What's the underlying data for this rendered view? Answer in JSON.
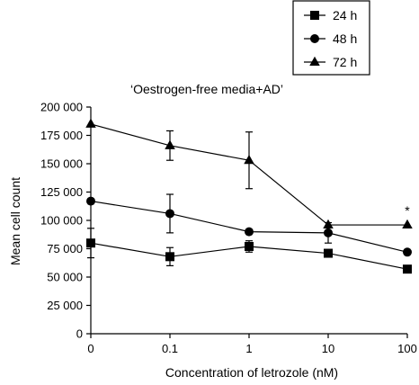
{
  "chart_data": {
    "type": "line",
    "title": "‘Oestrogen-free media+AD’",
    "xlabel": "Concentration of letrozole (nM)",
    "ylabel": "Mean cell count",
    "x_categories": [
      "0",
      "0.1",
      "1",
      "10",
      "100"
    ],
    "ylim": [
      0,
      200000
    ],
    "y_ticks": [
      0,
      25000,
      50000,
      75000,
      100000,
      125000,
      150000,
      175000,
      200000
    ],
    "y_tick_labels": [
      "0",
      "25 000",
      "50 000",
      "75 000",
      "100 000",
      "125 000",
      "150 000",
      "175 000",
      "200 000"
    ],
    "grid": false,
    "legend_position": "top-right",
    "series": [
      {
        "name": "24 h",
        "marker": "square",
        "values": [
          80000,
          68000,
          77000,
          71000,
          57000
        ],
        "errors": [
          13000,
          8000,
          5000,
          0,
          0
        ]
      },
      {
        "name": "48 h",
        "marker": "circle",
        "values": [
          117000,
          106000,
          90000,
          89000,
          72000
        ],
        "errors": [
          0,
          17000,
          0,
          9000,
          0
        ]
      },
      {
        "name": "72 h",
        "marker": "triangle",
        "values": [
          185000,
          166000,
          153000,
          96000,
          96000
        ],
        "errors": [
          0,
          13000,
          25000,
          0,
          0
        ]
      }
    ],
    "annotations": [
      {
        "text": "*",
        "x": "100",
        "y": 108000
      }
    ]
  }
}
